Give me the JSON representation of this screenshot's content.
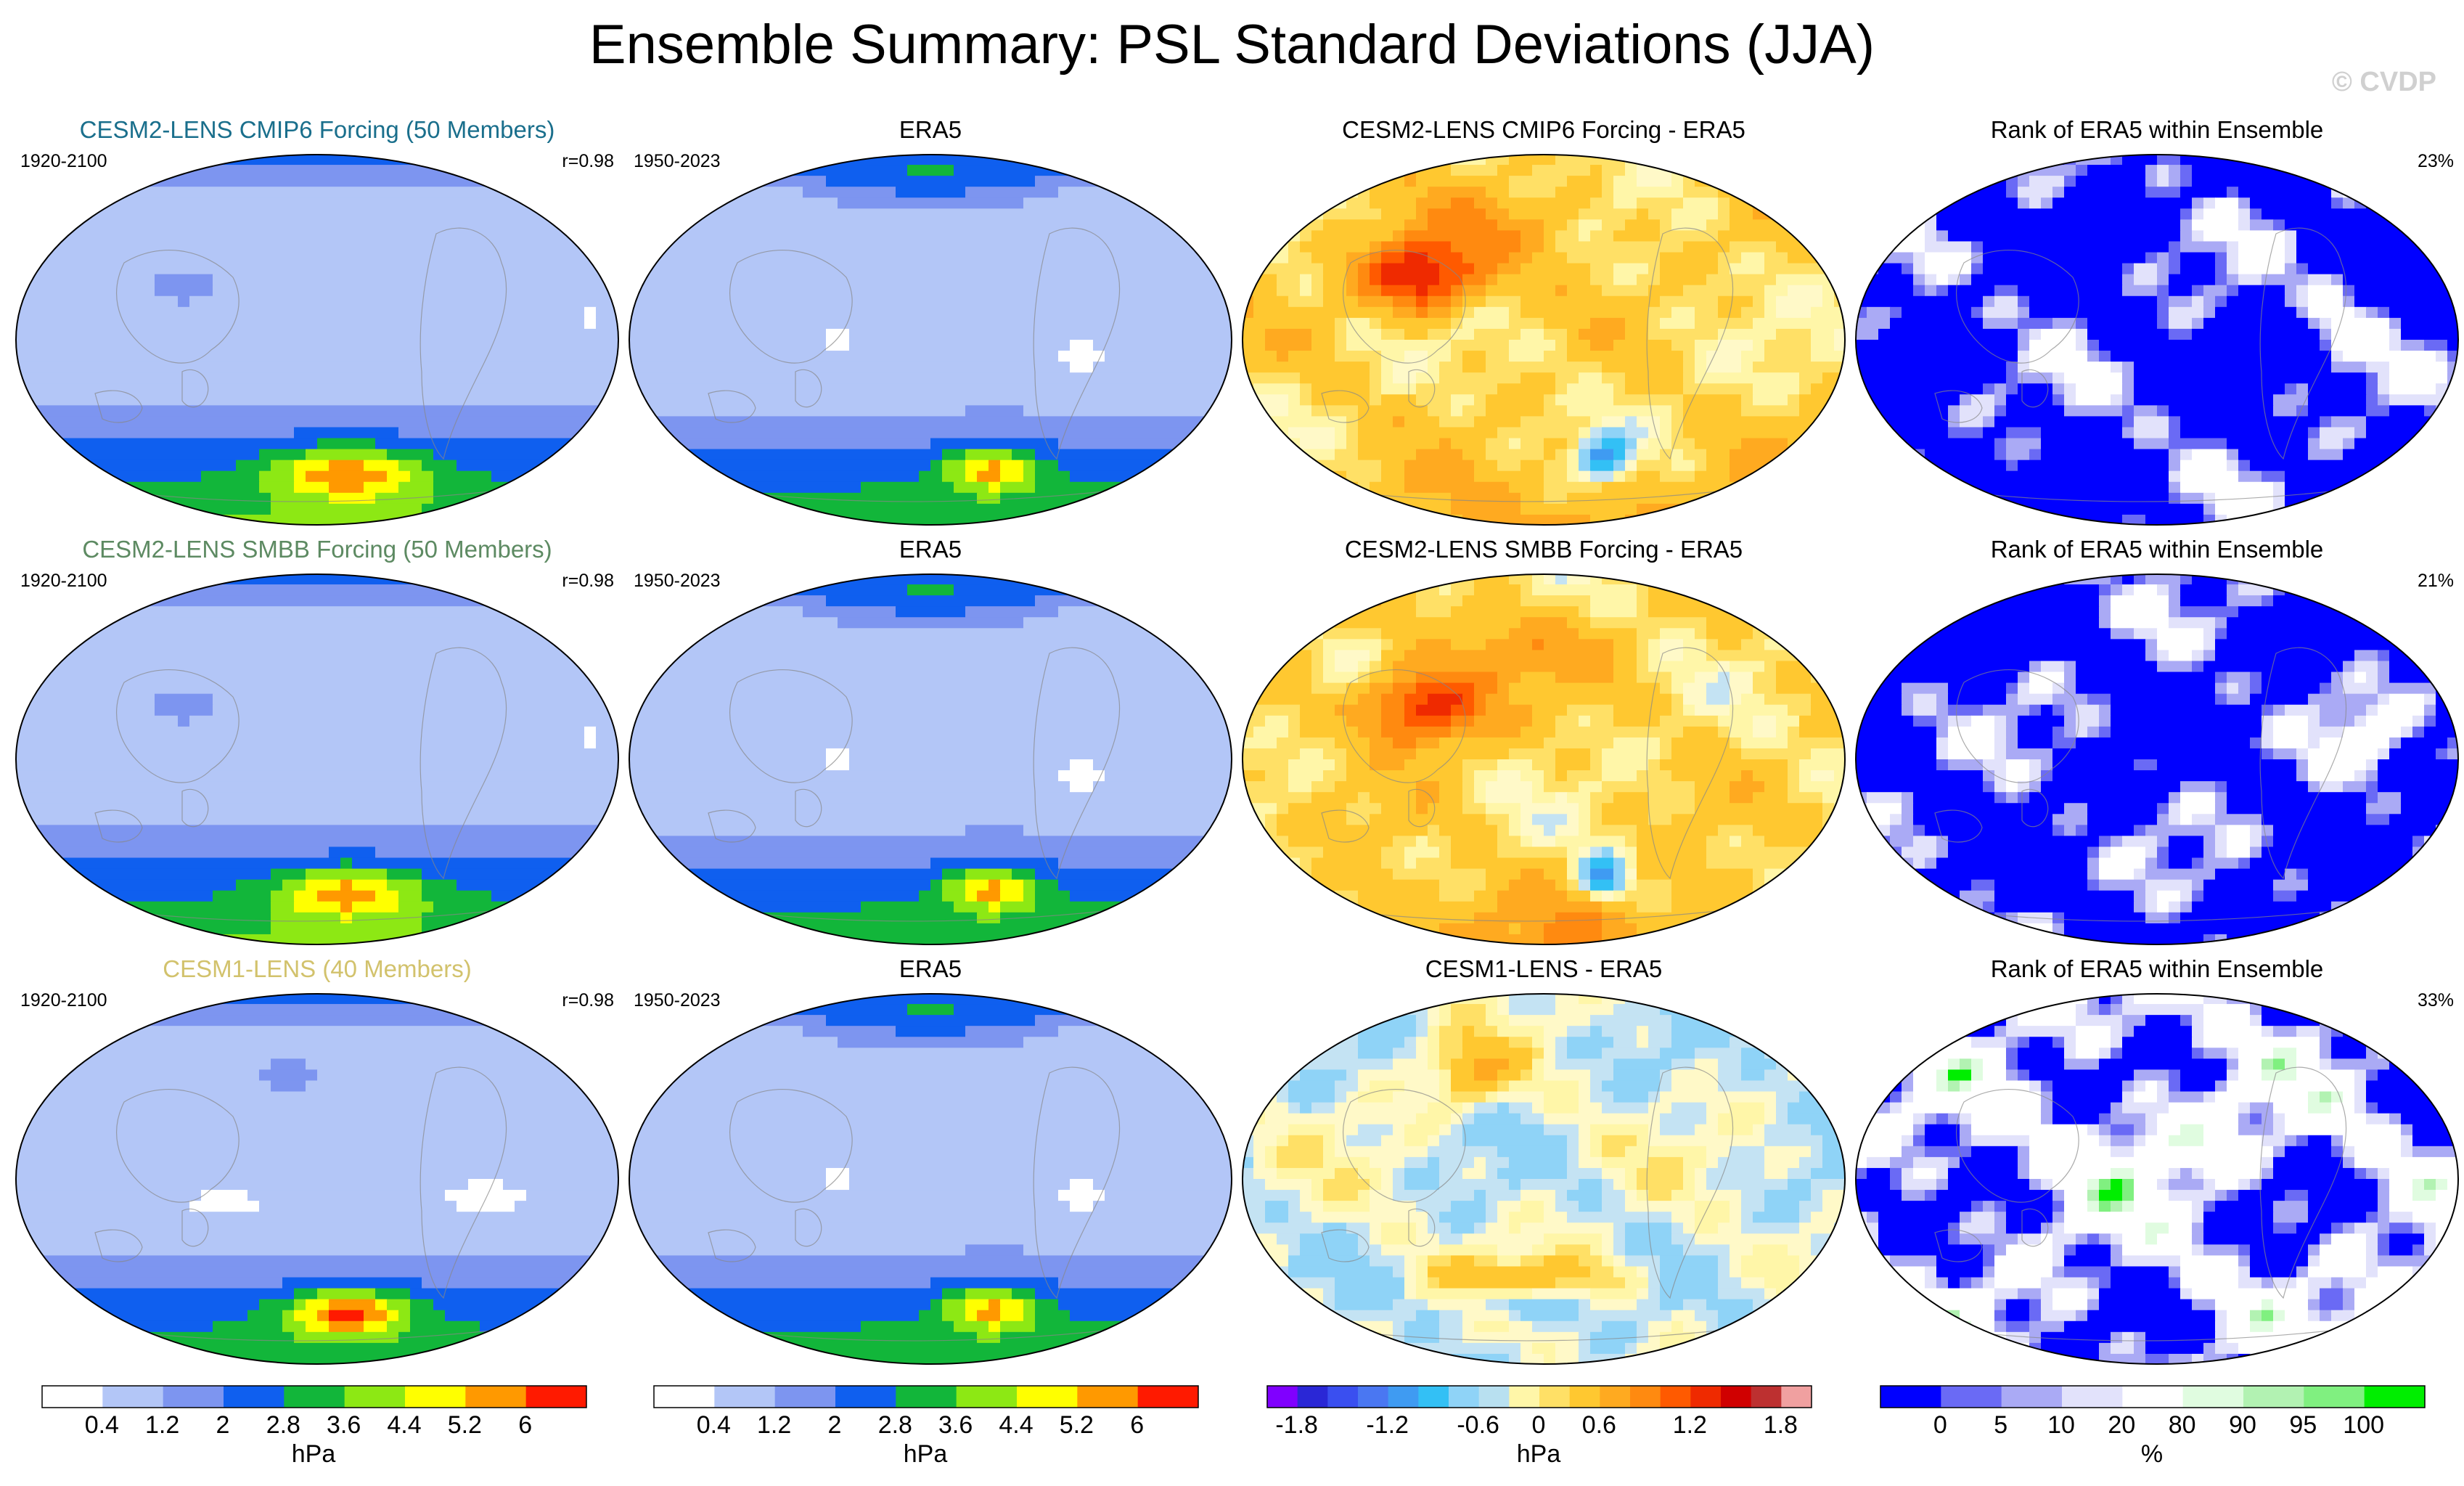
{
  "header": {
    "title": "Ensemble Summary: PSL Standard Deviations (JJA)",
    "copyright": "© CVDP"
  },
  "rows": [
    {
      "model": {
        "title": "CESM2-LENS CMIP6 Forcing (50 Members)",
        "period": "1920-2100",
        "r": "r=0.98",
        "color": "#1a6f8c",
        "sim": "s1"
      },
      "obs": {
        "title": "ERA5",
        "period": "1950-2023",
        "sim": "obs"
      },
      "diff": {
        "title": "CESM2-LENS CMIP6 Forcing - ERA5",
        "sim": "d1"
      },
      "rank": {
        "title": "Rank of ERA5 within Ensemble",
        "pct": "23%",
        "sim": "r1"
      }
    },
    {
      "model": {
        "title": "CESM2-LENS SMBB Forcing (50 Members)",
        "period": "1920-2100",
        "r": "r=0.98",
        "color": "#5d8a62",
        "sim": "s2"
      },
      "obs": {
        "title": "ERA5",
        "period": "1950-2023",
        "sim": "obs"
      },
      "diff": {
        "title": "CESM2-LENS SMBB Forcing - ERA5",
        "sim": "d2"
      },
      "rank": {
        "title": "Rank of ERA5 within Ensemble",
        "pct": "21%",
        "sim": "r2"
      }
    },
    {
      "model": {
        "title": "CESM1-LENS (40 Members)",
        "period": "1920-2100",
        "r": "r=0.98",
        "color": "#d2c26c",
        "sim": "s3"
      },
      "obs": {
        "title": "ERA5",
        "period": "1950-2023",
        "sim": "obs"
      },
      "diff": {
        "title": "CESM1-LENS - ERA5",
        "sim": "d3"
      },
      "rank": {
        "title": "Rank of ERA5 within Ensemble",
        "pct": "33%",
        "sim": "r3"
      }
    }
  ],
  "colorbars": [
    {
      "unit": "hPa",
      "colors": [
        "#ffffff",
        "#b3c6f7",
        "#7d95f0",
        "#0f5fef",
        "#12b63a",
        "#8de814",
        "#ffff00",
        "#ff9900",
        "#ff1a00"
      ],
      "labels": [
        "0.4",
        "1.2",
        "2",
        "2.8",
        "3.6",
        "4.4",
        "5.2",
        "6"
      ]
    },
    {
      "unit": "hPa",
      "colors": [
        "#ffffff",
        "#b3c6f7",
        "#7d95f0",
        "#0f5fef",
        "#12b63a",
        "#8de814",
        "#ffff00",
        "#ff9900",
        "#ff1a00"
      ],
      "labels": [
        "0.4",
        "1.2",
        "2",
        "2.8",
        "3.6",
        "4.4",
        "5.2",
        "6"
      ]
    },
    {
      "unit": "hPa",
      "colors": [
        "#8000ff",
        "#2a27d6",
        "#3a4ff0",
        "#4a77f2",
        "#3f9bf2",
        "#33c0f5",
        "#8fd3f7",
        "#b8e0f0",
        "#fff6a8",
        "#ffe066",
        "#ffc830",
        "#ffaa20",
        "#ff8a10",
        "#ff5a00",
        "#ef2a00",
        "#d00000",
        "#bd3030",
        "#f0a0a0"
      ],
      "labels": [
        "-1.8",
        "-1.2",
        "-0.6",
        "0",
        "0.6",
        "1.2",
        "1.8"
      ]
    },
    {
      "unit": "%",
      "colors": [
        "#0000ff",
        "#6a6af5",
        "#aaaaf5",
        "#e2e2fb",
        "#ffffff",
        "#e0fce0",
        "#b2f2b2",
        "#80f080",
        "#00ee00"
      ],
      "labels": [
        "0",
        "5",
        "10",
        "20",
        "80",
        "90",
        "95",
        "100"
      ]
    }
  ]
}
